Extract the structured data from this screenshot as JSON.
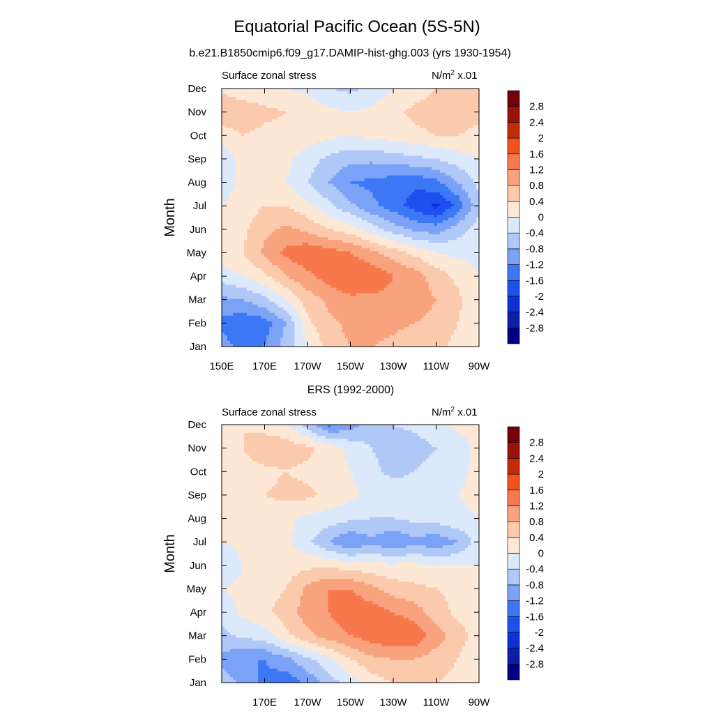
{
  "figure": {
    "title": "Equatorial Pacific Ocean (5S-5N)",
    "panels": [
      {
        "caption": "b.e21.B1850cmip6.f09_g17.DAMIP-hist-ghg.003 (yrs 1930-1954)",
        "left_label": "Surface zonal stress",
        "units_label": "N/m",
        "units_exp": "2",
        "units_scale": "x.01"
      },
      {
        "caption": "ERS (1992-2000)",
        "left_label": "Surface zonal stress",
        "units_label": "N/m",
        "units_exp": "2",
        "units_scale": "x.01"
      }
    ]
  },
  "chart_data": [
    {
      "type": "heatmap",
      "title": "b.e21.B1850cmip6.f09_g17.DAMIP-hist-ghg.003 (yrs 1930-1954)",
      "xlabel": "",
      "ylabel": "Month",
      "x_tick_labels": [
        "150E",
        "170E",
        "170W",
        "150W",
        "130W",
        "110W",
        "90W"
      ],
      "y_tick_labels": [
        "Jan",
        "Feb",
        "Mar",
        "Apr",
        "May",
        "Jun",
        "Jul",
        "Aug",
        "Sep",
        "Oct",
        "Nov",
        "Dec"
      ],
      "x_range_lon_east": [
        150,
        270
      ],
      "x_lon_east": [
        150,
        160,
        170,
        180,
        190,
        200,
        210,
        220,
        230,
        240,
        250,
        260,
        270
      ],
      "months": [
        "Jan",
        "Feb",
        "Mar",
        "Apr",
        "May",
        "Jun",
        "Jul",
        "Aug",
        "Sep",
        "Oct",
        "Nov",
        "Dec"
      ],
      "z": [
        [
          -1.0,
          -1.4,
          -1.2,
          -0.6,
          -0.1,
          0.6,
          0.8,
          0.8,
          0.7,
          0.5,
          0.5,
          0.3,
          0.0
        ],
        [
          -1.3,
          -1.5,
          -1.4,
          -0.8,
          0.3,
          0.7,
          0.9,
          1.0,
          0.9,
          0.8,
          0.7,
          0.4,
          0.1
        ],
        [
          -0.9,
          -0.8,
          -0.5,
          0.0,
          0.6,
          0.9,
          1.1,
          1.1,
          1.1,
          1.0,
          0.8,
          0.5,
          0.1
        ],
        [
          -0.2,
          0.0,
          0.3,
          0.8,
          1.1,
          1.4,
          1.6,
          1.5,
          1.2,
          1.0,
          0.6,
          0.3,
          0.0
        ],
        [
          0.2,
          0.4,
          0.9,
          1.3,
          1.5,
          1.4,
          1.2,
          0.9,
          0.6,
          0.3,
          0.0,
          -0.1,
          -0.1
        ],
        [
          0.1,
          0.3,
          0.7,
          0.9,
          0.7,
          0.4,
          0.2,
          -0.2,
          -0.6,
          -0.9,
          -1.0,
          -0.6,
          -0.2
        ],
        [
          0.0,
          0.2,
          0.4,
          0.4,
          0.1,
          -0.3,
          -0.7,
          -1.1,
          -1.4,
          -1.8,
          -2.1,
          -1.5,
          -0.5
        ],
        [
          -0.2,
          0.1,
          0.2,
          0.0,
          -0.4,
          -0.8,
          -1.2,
          -1.3,
          -1.4,
          -1.5,
          -1.3,
          -0.8,
          -0.3
        ],
        [
          -0.3,
          0.2,
          0.3,
          0.1,
          -0.2,
          -0.5,
          -0.7,
          -0.7,
          -0.6,
          -0.5,
          -0.4,
          -0.2,
          0.0
        ],
        [
          0.2,
          0.4,
          0.3,
          0.3,
          0.2,
          0.1,
          0.0,
          0.1,
          0.2,
          0.3,
          0.4,
          0.4,
          0.3
        ],
        [
          0.7,
          0.6,
          0.5,
          0.4,
          0.3,
          0.1,
          0.0,
          0.1,
          0.3,
          0.5,
          0.6,
          0.6,
          0.5
        ],
        [
          0.3,
          0.2,
          0.1,
          0.0,
          -0.1,
          -0.4,
          -0.5,
          -0.3,
          0.0,
          0.2,
          0.4,
          0.5,
          0.4
        ]
      ],
      "contour_levels": [
        -2.8,
        -2.4,
        -2,
        -1.6,
        -1.2,
        -0.8,
        -0.4,
        0,
        0.4,
        0.8,
        1.2,
        1.6,
        2,
        2.4,
        2.8
      ],
      "colorbar_labels": [
        "2.8",
        "2.4",
        "2",
        "1.6",
        "1.2",
        "0.8",
        "0.4",
        "0",
        "-0.4",
        "-0.8",
        "-1.2",
        "-1.6",
        "-2",
        "-2.4",
        "-2.8"
      ],
      "colors": [
        "#000080",
        "#0c1ea8",
        "#0c31d6",
        "#1e50f0",
        "#3c78f5",
        "#7ba2f7",
        "#b0c8f8",
        "#dbe9fb",
        "#fde8d6",
        "#fbcaad",
        "#f9a27e",
        "#f7784c",
        "#f0531f",
        "#c42b0a",
        "#9a1208",
        "#74000a"
      ]
    },
    {
      "type": "heatmap",
      "title": "ERS (1992-2000)",
      "xlabel": "",
      "ylabel": "Month",
      "x_tick_labels": [
        "170E",
        "170W",
        "150W",
        "130W",
        "110W",
        "90W"
      ],
      "y_tick_labels": [
        "Jan",
        "Feb",
        "Mar",
        "Apr",
        "May",
        "Jun",
        "Jul",
        "Aug",
        "Sep",
        "Oct",
        "Nov",
        "Dec"
      ],
      "x_range_lon_east": [
        150,
        270
      ],
      "x_lon_east": [
        150,
        160,
        170,
        180,
        190,
        200,
        210,
        220,
        230,
        240,
        250,
        260,
        270
      ],
      "months": [
        "Jan",
        "Feb",
        "Mar",
        "Apr",
        "May",
        "Jun",
        "Jul",
        "Aug",
        "Sep",
        "Oct",
        "Nov",
        "Dec"
      ],
      "z": [
        [
          -0.6,
          -0.9,
          -1.3,
          -1.5,
          -1.1,
          -0.6,
          -0.2,
          0.2,
          0.4,
          0.5,
          0.4,
          0.3,
          0.1
        ],
        [
          -0.9,
          -1.2,
          -1.2,
          -0.9,
          -0.5,
          -0.1,
          0.4,
          0.7,
          0.8,
          0.8,
          0.6,
          0.4,
          0.0
        ],
        [
          -0.5,
          -0.3,
          -0.2,
          0.3,
          0.7,
          1.0,
          1.2,
          1.4,
          1.6,
          1.5,
          1.0,
          0.6,
          0.2
        ],
        [
          -0.3,
          0.1,
          0.3,
          0.6,
          1.0,
          1.2,
          1.5,
          1.4,
          1.2,
          1.0,
          0.6,
          0.3,
          0.1
        ],
        [
          0.0,
          0.1,
          0.2,
          0.4,
          0.9,
          1.2,
          1.2,
          0.9,
          0.6,
          0.5,
          0.4,
          0.3,
          0.1
        ],
        [
          -0.4,
          0.0,
          0.1,
          0.2,
          0.3,
          0.3,
          0.2,
          0.1,
          0.1,
          0.1,
          0.0,
          0.0,
          0.0
        ],
        [
          0.0,
          0.1,
          0.2,
          0.1,
          -0.3,
          -0.8,
          -1.2,
          -0.9,
          -1.2,
          -0.9,
          -1.1,
          -0.8,
          -0.2
        ],
        [
          0.1,
          0.2,
          0.2,
          0.1,
          -0.1,
          -0.2,
          -0.3,
          -0.4,
          -0.4,
          -0.3,
          -0.2,
          -0.1,
          0.0
        ],
        [
          0.1,
          0.2,
          0.4,
          0.5,
          0.5,
          0.3,
          0.1,
          -0.1,
          -0.2,
          -0.2,
          -0.1,
          0.0,
          0.1
        ],
        [
          0.1,
          0.2,
          0.3,
          0.4,
          0.3,
          0.2,
          0.0,
          -0.3,
          -0.5,
          -0.4,
          -0.2,
          -0.1,
          0.1
        ],
        [
          0.3,
          0.4,
          0.7,
          0.6,
          0.5,
          0.2,
          -0.1,
          -0.4,
          -0.6,
          -0.6,
          -0.4,
          -0.2,
          0.1
        ],
        [
          0.3,
          0.4,
          0.2,
          0.1,
          -0.6,
          -1.3,
          -1.0,
          -0.6,
          -0.4,
          -0.3,
          -0.1,
          0.1,
          0.2
        ]
      ],
      "contour_levels": [
        -2.8,
        -2.4,
        -2,
        -1.6,
        -1.2,
        -0.8,
        -0.4,
        0,
        0.4,
        0.8,
        1.2,
        1.6,
        2,
        2.4,
        2.8
      ],
      "colorbar_labels": [
        "2.8",
        "2.4",
        "2",
        "1.6",
        "1.2",
        "0.8",
        "0.4",
        "0",
        "-0.4",
        "-0.8",
        "-1.2",
        "-1.6",
        "-2",
        "-2.4",
        "-2.8"
      ],
      "colors": [
        "#000080",
        "#0c1ea8",
        "#0c31d6",
        "#1e50f0",
        "#3c78f5",
        "#7ba2f7",
        "#b0c8f8",
        "#dbe9fb",
        "#fde8d6",
        "#fbcaad",
        "#f9a27e",
        "#f7784c",
        "#f0531f",
        "#c42b0a",
        "#9a1208",
        "#74000a"
      ]
    }
  ]
}
